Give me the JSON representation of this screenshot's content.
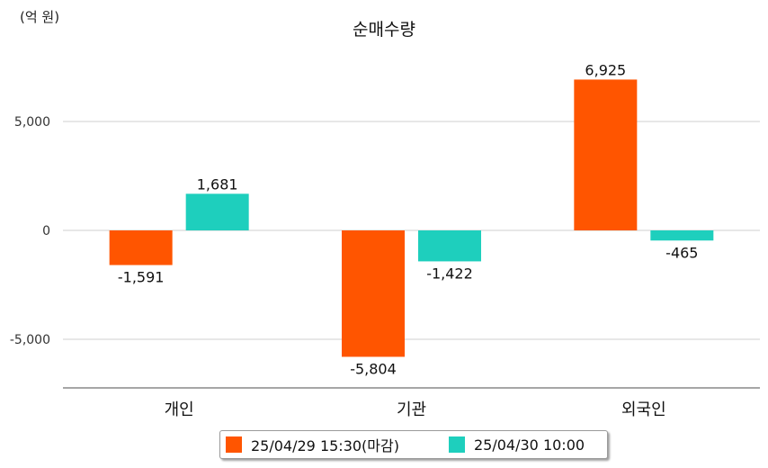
{
  "chart_data": {
    "type": "bar",
    "title": "순매수량",
    "unit_label": "(억 원)",
    "categories": [
      "개인",
      "기관",
      "외국인"
    ],
    "series": [
      {
        "name": "25/04/29 15:30(마감)",
        "color": "#ff5500",
        "values": [
          -1591,
          -5804,
          6925
        ]
      },
      {
        "name": "25/04/30 10:00",
        "color": "#1ecfbd",
        "values": [
          1681,
          -1422,
          -465
        ]
      }
    ],
    "value_labels": [
      [
        "-1,591",
        "-5,804",
        "6,925"
      ],
      [
        "1,681",
        "-1,422",
        "-465"
      ]
    ],
    "yticks": [
      5000,
      0,
      -5000
    ],
    "ytick_labels": [
      "5,000",
      "0",
      "-5,000"
    ],
    "ylim": [
      -7200,
      7500
    ],
    "grid": true,
    "legend_position": "bottom"
  }
}
